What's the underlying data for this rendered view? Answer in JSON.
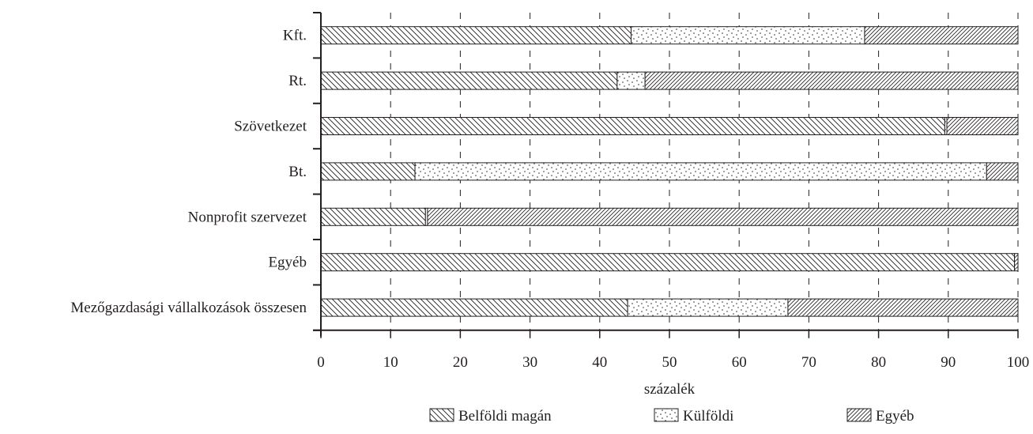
{
  "chart_data": {
    "type": "bar",
    "orientation": "horizontal",
    "stacked": true,
    "categories": [
      "Kft.",
      "Rt.",
      "Szövetkezet",
      "Bt.",
      "Nonprofit szervezet",
      "Egyéb",
      "Mezőgazdasági vállalkozások összesen"
    ],
    "series": [
      {
        "name": "Belföldi magán",
        "pattern": "diagonal-backslash",
        "values": [
          44.5,
          42.5,
          89.5,
          13.5,
          15,
          99.5,
          44
        ]
      },
      {
        "name": "Külföldi",
        "pattern": "dots",
        "values": [
          33.5,
          4,
          0.3,
          82,
          0.3,
          0,
          23
        ]
      },
      {
        "name": "Egyéb",
        "pattern": "diagonal-slash",
        "values": [
          22,
          53.5,
          10.2,
          4.5,
          84.7,
          0.5,
          33
        ]
      }
    ],
    "xlabel": "százalék",
    "xlim": [
      0,
      100
    ],
    "xticks": [
      0,
      10,
      20,
      30,
      40,
      50,
      60,
      70,
      80,
      90,
      100
    ],
    "grid": "vertical-dashed",
    "legend": "bottom",
    "colors": {
      "ink": "#231f20",
      "background": "#ffffff"
    }
  }
}
